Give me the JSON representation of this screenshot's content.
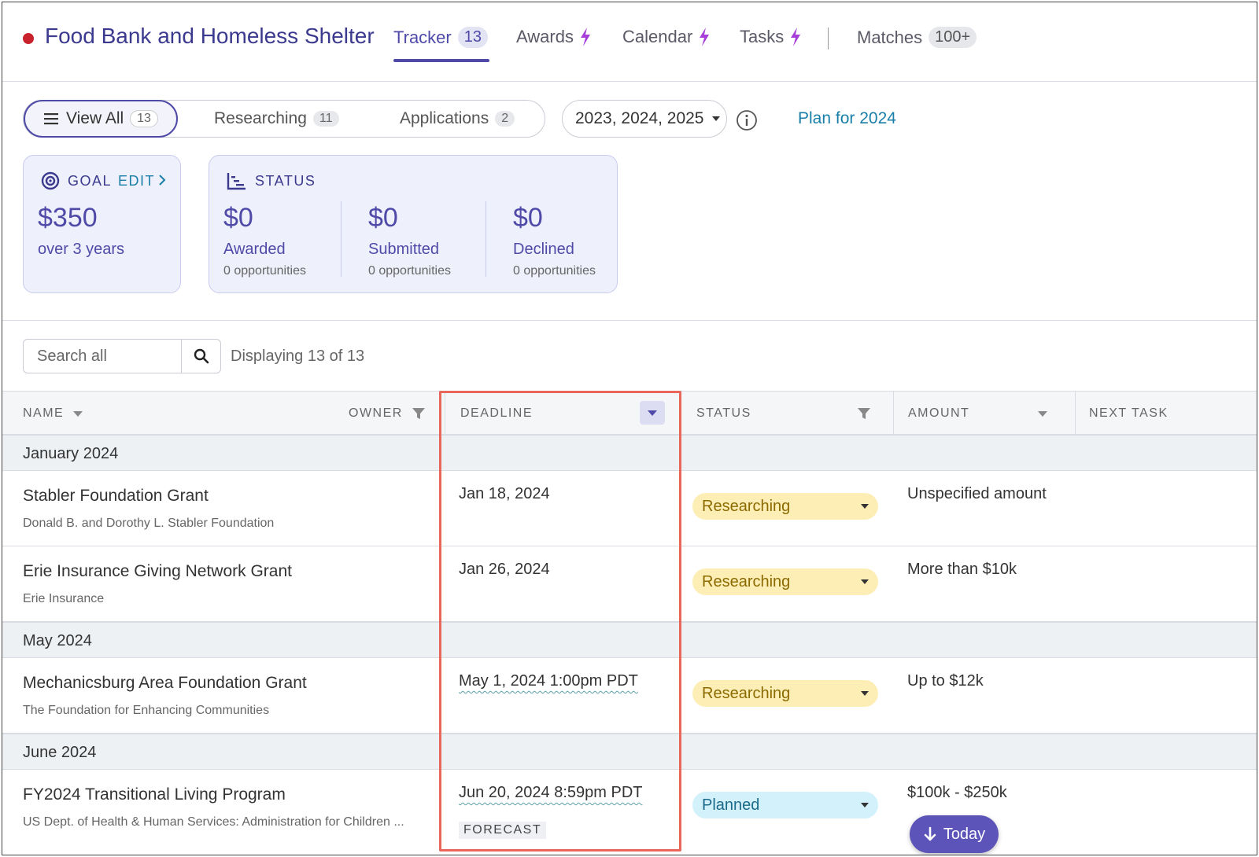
{
  "header": {
    "org_name": "Food Bank and Homeless Shelter",
    "tabs": [
      {
        "label": "Tracker",
        "count": "13"
      },
      {
        "label": "Awards"
      },
      {
        "label": "Calendar"
      },
      {
        "label": "Tasks"
      },
      {
        "label": "Matches",
        "count": "100+"
      }
    ],
    "colors": {
      "accent": "#4f4aa8",
      "dot": "#c8232c",
      "bolt": "#a63fd9"
    }
  },
  "filters": {
    "segments": [
      {
        "label": "View All",
        "count": "13"
      },
      {
        "label": "Researching",
        "count": "11"
      },
      {
        "label": "Applications",
        "count": "2"
      }
    ],
    "years": "2023, 2024, 2025",
    "plan_link": "Plan for 2024"
  },
  "goal_card": {
    "label": "GOAL",
    "edit": "EDIT",
    "amount": "$350",
    "period": "over 3 years"
  },
  "status_card": {
    "label": "STATUS",
    "items": [
      {
        "value": "$0",
        "label": "Awarded",
        "count": "0 opportunities"
      },
      {
        "value": "$0",
        "label": "Submitted",
        "count": "0 opportunities"
      },
      {
        "value": "$0",
        "label": "Declined",
        "count": "0 opportunities"
      }
    ]
  },
  "search": {
    "placeholder": "Search all",
    "displaying": "Displaying 13 of 13"
  },
  "table": {
    "columns": {
      "name": "NAME",
      "owner": "OWNER",
      "deadline": "DEADLINE",
      "status": "STATUS",
      "amount": "AMOUNT",
      "next_task": "NEXT TASK"
    },
    "groups": [
      "January 2024",
      "May 2024",
      "June 2024"
    ],
    "rows": [
      {
        "name": "Stabler Foundation Grant",
        "funder": "Donald B. and Dorothy L. Stabler Foundation",
        "deadline": "Jan 18, 2024",
        "status": "Researching",
        "amount": "Unspecified amount"
      },
      {
        "name": "Erie Insurance Giving Network Grant",
        "funder": "Erie Insurance",
        "deadline": "Jan 26, 2024",
        "status": "Researching",
        "amount": "More than $10k"
      },
      {
        "name": "Mechanicsburg Area Foundation Grant",
        "funder": "The Foundation for Enhancing Communities",
        "deadline": "May 1, 2024 1:00pm PDT",
        "status": "Researching",
        "amount": "Up to $12k"
      },
      {
        "name": "FY2024 Transitional Living Program",
        "funder": "US Dept. of Health & Human Services: Administration for Children ...",
        "deadline": "Jun 20, 2024 8:59pm PDT",
        "deadline_tag": "FORECAST",
        "status": "Planned",
        "amount": "$100k - $250k"
      }
    ]
  },
  "today_button": "Today"
}
